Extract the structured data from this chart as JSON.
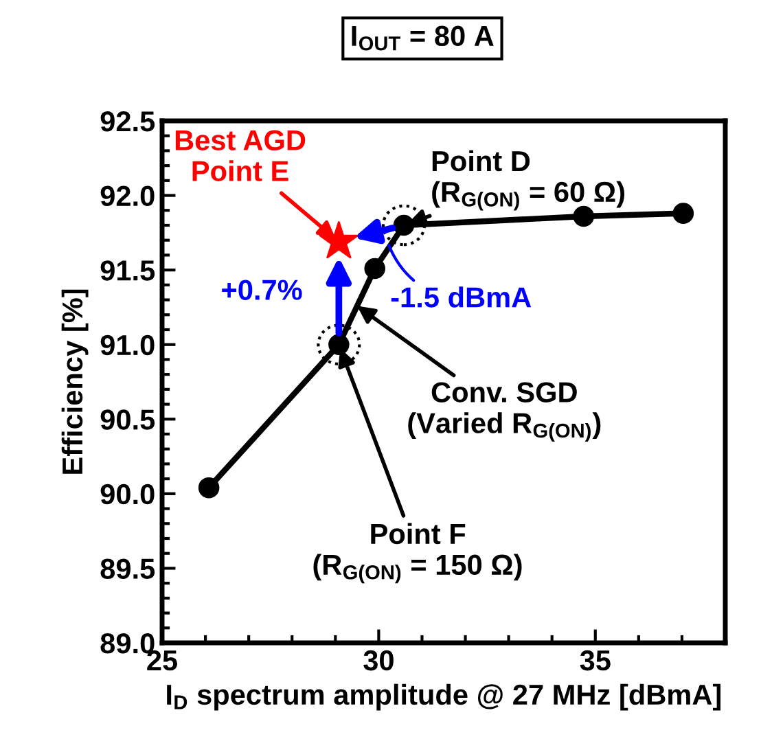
{
  "chart_data": {
    "type": "line",
    "title": "I$_{OUT}$ = 80 A",
    "xlabel": "I$_{D}$ spectrum amplitude @ 27 MHz [dBmA]",
    "ylabel": "Efficiency [%]",
    "series": [
      {
        "color": "#000000",
        "marker": "circle",
        "x": [
          26.08,
          29.08,
          29.91,
          30.58,
          34.73,
          37.03
        ],
        "values": [
          90.04,
          91.0,
          91.51,
          91.8,
          91.86,
          91.88
        ]
      },
      {
        "type": "scatter",
        "color": "#ff0000",
        "marker": "star",
        "x": [
          29.08
        ],
        "values": [
          91.69
        ]
      }
    ],
    "xlim": [
      25,
      38
    ],
    "xticks": [
      25,
      30,
      35
    ],
    "ylim": [
      89.0,
      92.5
    ],
    "yticks": [
      {
        "value": 89.0,
        "label": "89.0"
      },
      {
        "value": 89.5,
        "label": "89.5"
      },
      {
        "value": 90.0,
        "label": "90.0"
      },
      {
        "value": 90.5,
        "label": "90.5"
      },
      {
        "value": 91.0,
        "label": "91.0"
      },
      {
        "value": 91.5,
        "label": "91.5"
      },
      {
        "value": 92.0,
        "label": "92.0"
      },
      {
        "value": 92.5,
        "label": "92.5"
      }
    ],
    "grid": false,
    "annotations": [
      {
        "text": "Best AGD\nPoint E",
        "x": 29.08,
        "y": 91.69
      },
      {
        "text": "Point D\n(R$_{G(ON)}$ = 60 Ω)",
        "x": 30.58,
        "y": 91.8
      },
      "+0.7%",
      {
        "text": "-1.5 dBmA",
        "x": 30.2,
        "y": 91.69
      },
      {
        "text": "Conv. SGD\n(Varied R$_{G(ON)}$)",
        "x": 29.5,
        "y": 91.26
      },
      {
        "text": "Point F\n(R$_{G(ON)}$ = 150 Ω)",
        "x": 29.08,
        "y": 91.0
      }
    ]
  }
}
